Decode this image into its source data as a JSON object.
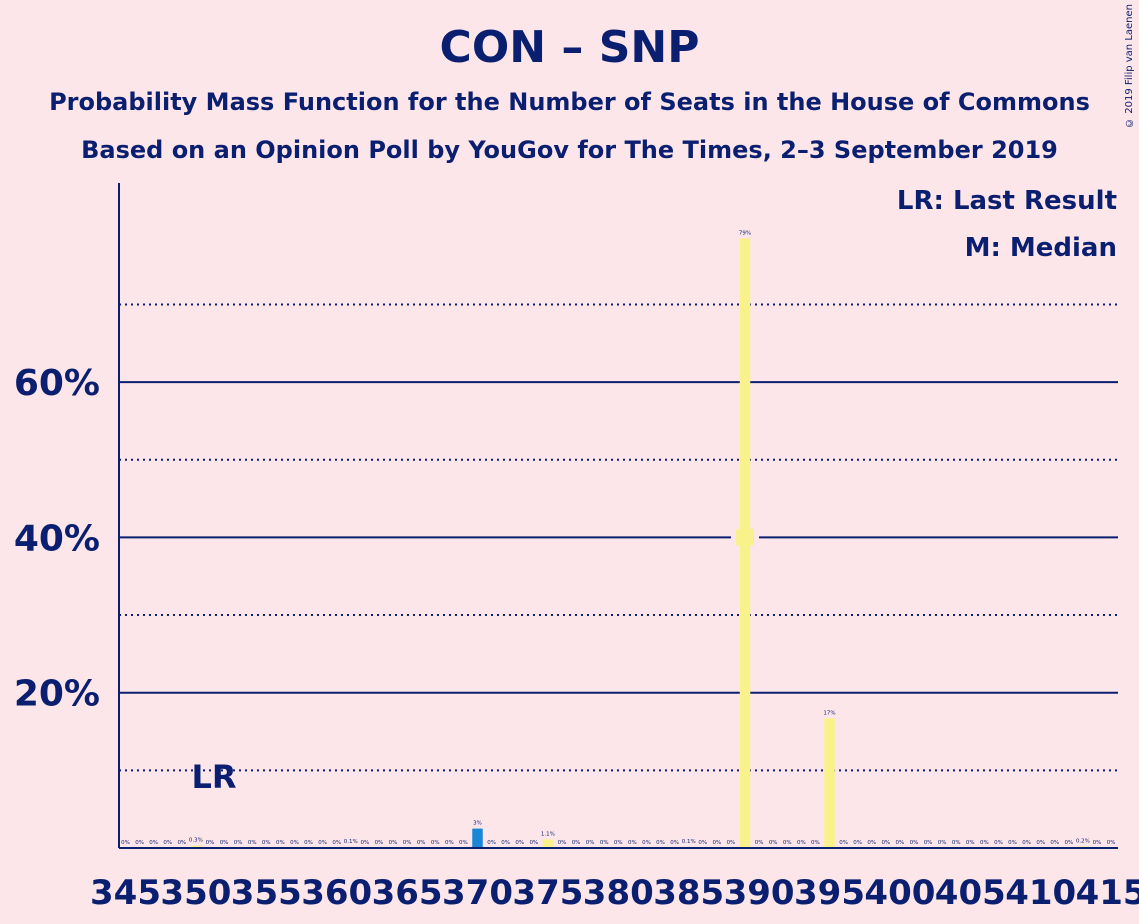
{
  "title": "CON – SNP",
  "subtitle1": "Probability Mass Function for the Number of Seats in the House of Commons",
  "subtitle2": "Based on an Opinion Poll by YouGov for The Times, 2–3 September 2019",
  "copyright": "© 2019 Filip van Laenen",
  "colors": {
    "background": "#fde6ea",
    "text": "#0a1f6f",
    "bar_default": "#f9f28a",
    "bar_highlight": "#1a86d8"
  },
  "chart_data": {
    "type": "bar",
    "xlim": [
      345,
      415
    ],
    "ylim": [
      0,
      85
    ],
    "y_major_ticks": [
      20,
      40,
      60
    ],
    "y_major_tick_labels": [
      "20%",
      "40%",
      "60%"
    ],
    "y_minor_gridlines": [
      10,
      30,
      50,
      70
    ],
    "x_tick_values": [
      345,
      350,
      355,
      360,
      365,
      370,
      375,
      380,
      385,
      390,
      395,
      400,
      405,
      410,
      415
    ],
    "x_tick_labels": [
      "345",
      "350",
      "355",
      "360",
      "365",
      "370",
      "375",
      "380",
      "385",
      "390",
      "395",
      "400",
      "405",
      "410",
      "415"
    ],
    "bars": [
      {
        "x": 345,
        "value": 0,
        "label": "0%"
      },
      {
        "x": 346,
        "value": 0,
        "label": "0%"
      },
      {
        "x": 347,
        "value": 0,
        "label": "0%"
      },
      {
        "x": 348,
        "value": 0,
        "label": "0%"
      },
      {
        "x": 349,
        "value": 0,
        "label": "0%"
      },
      {
        "x": 350,
        "value": 0.3,
        "label": "0.3%"
      },
      {
        "x": 351,
        "value": 0,
        "label": "0%"
      },
      {
        "x": 352,
        "value": 0,
        "label": "0%"
      },
      {
        "x": 353,
        "value": 0,
        "label": "0%"
      },
      {
        "x": 354,
        "value": 0,
        "label": "0%"
      },
      {
        "x": 355,
        "value": 0,
        "label": "0%"
      },
      {
        "x": 356,
        "value": 0,
        "label": "0%"
      },
      {
        "x": 357,
        "value": 0,
        "label": "0%"
      },
      {
        "x": 358,
        "value": 0,
        "label": "0%"
      },
      {
        "x": 359,
        "value": 0,
        "label": "0%"
      },
      {
        "x": 360,
        "value": 0,
        "label": "0%"
      },
      {
        "x": 361,
        "value": 0.1,
        "label": "0.1%"
      },
      {
        "x": 362,
        "value": 0,
        "label": "0%"
      },
      {
        "x": 363,
        "value": 0,
        "label": "0%"
      },
      {
        "x": 364,
        "value": 0,
        "label": "0%"
      },
      {
        "x": 365,
        "value": 0,
        "label": "0%"
      },
      {
        "x": 366,
        "value": 0,
        "label": "0%"
      },
      {
        "x": 367,
        "value": 0,
        "label": "0%"
      },
      {
        "x": 368,
        "value": 0,
        "label": "0%"
      },
      {
        "x": 369,
        "value": 0,
        "label": "0%"
      },
      {
        "x": 370,
        "value": 2.5,
        "label": "3%",
        "highlight": true
      },
      {
        "x": 371,
        "value": 0,
        "label": "0%"
      },
      {
        "x": 372,
        "value": 0,
        "label": "0%"
      },
      {
        "x": 373,
        "value": 0,
        "label": "0%"
      },
      {
        "x": 374,
        "value": 0,
        "label": "0%"
      },
      {
        "x": 375,
        "value": 1.1,
        "label": "1.1%"
      },
      {
        "x": 376,
        "value": 0,
        "label": "0%"
      },
      {
        "x": 377,
        "value": 0,
        "label": "0%"
      },
      {
        "x": 378,
        "value": 0,
        "label": "0%"
      },
      {
        "x": 379,
        "value": 0,
        "label": "0%"
      },
      {
        "x": 380,
        "value": 0,
        "label": "0%"
      },
      {
        "x": 381,
        "value": 0,
        "label": "0%"
      },
      {
        "x": 382,
        "value": 0,
        "label": "0%"
      },
      {
        "x": 383,
        "value": 0,
        "label": "0%"
      },
      {
        "x": 384,
        "value": 0,
        "label": "0%"
      },
      {
        "x": 385,
        "value": 0.1,
        "label": "0.1%"
      },
      {
        "x": 386,
        "value": 0,
        "label": "0%"
      },
      {
        "x": 387,
        "value": 0,
        "label": "0%"
      },
      {
        "x": 388,
        "value": 0,
        "label": "0%"
      },
      {
        "x": 389,
        "value": 78.5,
        "label": "79%",
        "median": true
      },
      {
        "x": 390,
        "value": 0,
        "label": "0%"
      },
      {
        "x": 391,
        "value": 0,
        "label": "0%"
      },
      {
        "x": 392,
        "value": 0,
        "label": "0%"
      },
      {
        "x": 393,
        "value": 0,
        "label": "0%"
      },
      {
        "x": 394,
        "value": 0,
        "label": "0%"
      },
      {
        "x": 395,
        "value": 16.7,
        "label": "17%"
      },
      {
        "x": 396,
        "value": 0,
        "label": "0%"
      },
      {
        "x": 397,
        "value": 0,
        "label": "0%"
      },
      {
        "x": 398,
        "value": 0,
        "label": "0%"
      },
      {
        "x": 399,
        "value": 0,
        "label": "0%"
      },
      {
        "x": 400,
        "value": 0,
        "label": "0%"
      },
      {
        "x": 401,
        "value": 0,
        "label": "0%"
      },
      {
        "x": 402,
        "value": 0,
        "label": "0%"
      },
      {
        "x": 403,
        "value": 0,
        "label": "0%"
      },
      {
        "x": 404,
        "value": 0,
        "label": "0%"
      },
      {
        "x": 405,
        "value": 0,
        "label": "0%"
      },
      {
        "x": 406,
        "value": 0,
        "label": "0%"
      },
      {
        "x": 407,
        "value": 0,
        "label": "0%"
      },
      {
        "x": 408,
        "value": 0,
        "label": "0%"
      },
      {
        "x": 409,
        "value": 0,
        "label": "0%"
      },
      {
        "x": 410,
        "value": 0,
        "label": "0%"
      },
      {
        "x": 411,
        "value": 0,
        "label": "0%"
      },
      {
        "x": 412,
        "value": 0,
        "label": "0%"
      },
      {
        "x": 413,
        "value": 0.2,
        "label": "0.2%"
      },
      {
        "x": 414,
        "value": 0,
        "label": "0%"
      },
      {
        "x": 415,
        "value": 0,
        "label": "0%"
      }
    ],
    "last_result": {
      "x": 351,
      "text": "LR"
    },
    "median": {
      "x": 389,
      "text": "M"
    },
    "legend": [
      "LR: Last Result",
      "M: Median"
    ],
    "legend_position": "top-right"
  }
}
